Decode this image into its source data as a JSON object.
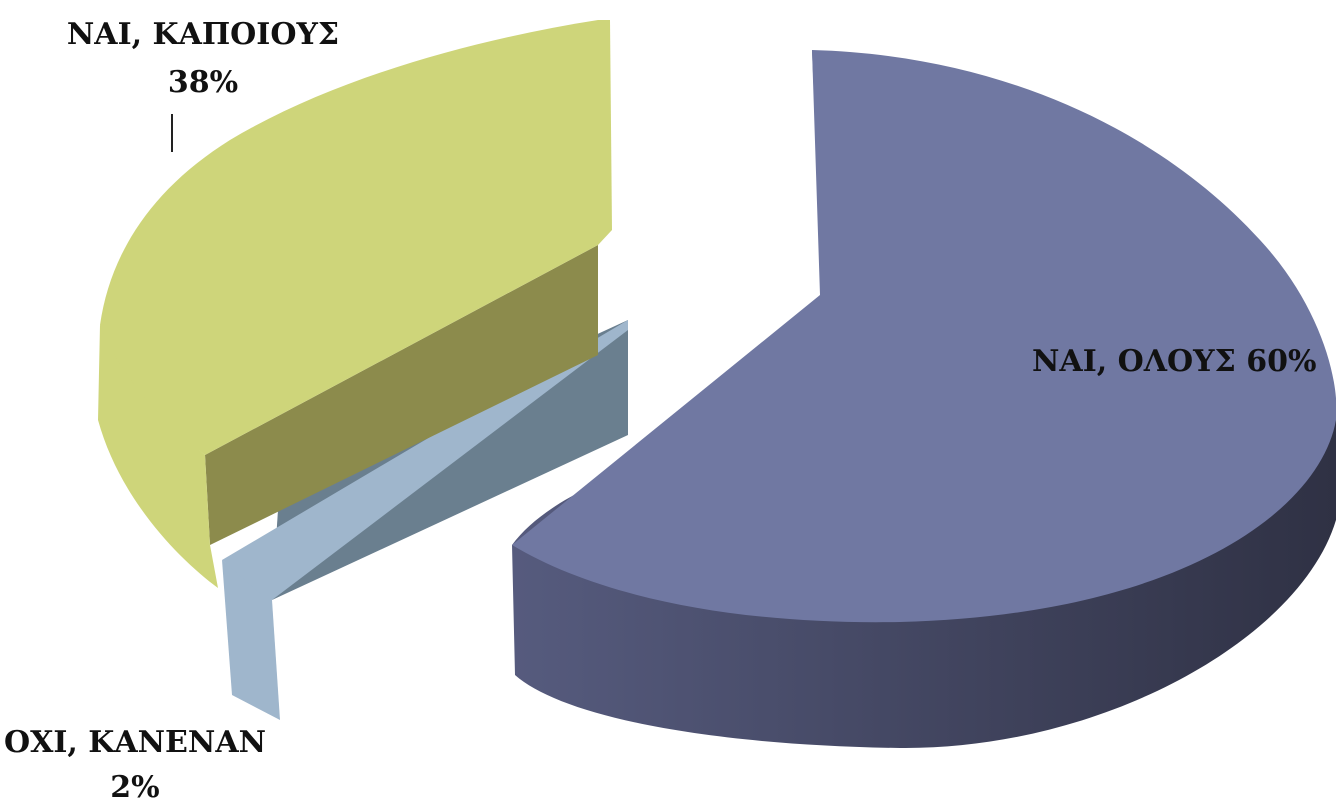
{
  "chart_data": {
    "type": "pie",
    "style": "3d-exploded",
    "slices": [
      {
        "label": "ΝΑΙ, ΟΛΟΥΣ",
        "value": 60,
        "display": "60%",
        "color_top": "#7078a2",
        "color_side_light": "#565b7e",
        "color_side_dark": "#2f3144"
      },
      {
        "label": "ΟΧΙ, ΚΑΝΕΝΑΝ",
        "value": 2,
        "display": "2%",
        "color_top": "#9fb6cc",
        "color_side_light": "#6a7f8f",
        "color_side_dark": "#566774"
      },
      {
        "label": "ΝΑΙ, ΚΑΠΟΙΟΥΣ",
        "value": 38,
        "display": "38%",
        "color_top": "#ced57a",
        "color_side_light": "#8c8b4c",
        "color_side_dark": "#7e7d42"
      }
    ],
    "labels": {
      "big": "ΝΑΙ, ΟΛΟΥΣ 60%",
      "some_line1": "ΝΑΙ, ΚΑΠΟΙΟΥΣ",
      "some_line2": "38%",
      "none_line1": "ΟΧΙ, ΚΑΝΕΝΑΝ",
      "none_line2": "2%"
    }
  }
}
